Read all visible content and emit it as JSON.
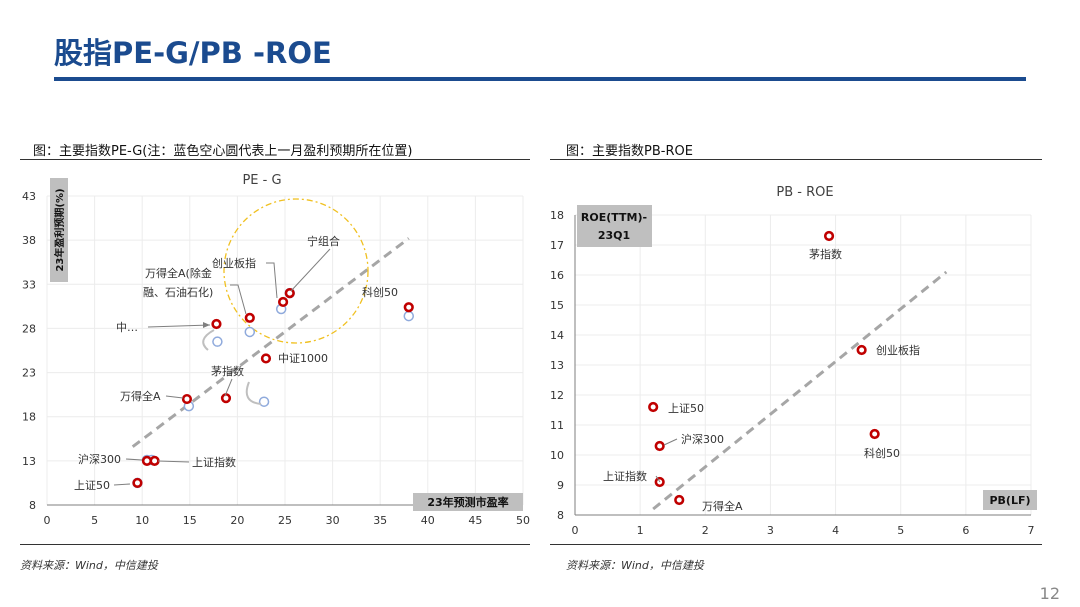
{
  "page": {
    "title": "股指PE-G/PB -ROE",
    "page_number": "12"
  },
  "left": {
    "caption": "图：主要指数PE-G(注：蓝色空心圆代表上一月盈利预期所在位置)",
    "source": "资料来源：Wind，中信建投"
  },
  "right": {
    "caption": "图：主要指数PB-ROE",
    "source": "资料来源：Wind，中信建投"
  },
  "colors": {
    "red": "#c00000",
    "blue": "#8faadc",
    "navy": "#1b4b8f",
    "dash": "#a6a6a6",
    "circle": "#f0c020"
  },
  "chart_data": [
    {
      "type": "scatter",
      "title": "PE - G",
      "xlabel": "23年预测市盈率",
      "ylabel": "23年盈利预期(%)",
      "xlim": [
        0,
        50
      ],
      "ylim": [
        8,
        43
      ],
      "xticks": [
        0,
        5,
        10,
        15,
        20,
        25,
        30,
        35,
        40,
        45,
        50
      ],
      "yticks": [
        8,
        13,
        18,
        23,
        28,
        33,
        38,
        43
      ],
      "series": [
        {
          "points": [
            {
              "label": "沪深300",
              "x": 10.5,
              "y": 13.0
            },
            {
              "label": "上证指数",
              "x": 11.3,
              "y": 13.0
            },
            {
              "label": "上证50",
              "x": 9.5,
              "y": 10.5
            },
            {
              "label": "万得全A",
              "x": 14.7,
              "y": 20.0
            },
            {
              "label": "茅指数",
              "x": 18.8,
              "y": 20.1
            },
            {
              "label": "中…",
              "x": 17.8,
              "y": 28.5
            },
            {
              "label": "万得全A(除金融、石油石化)",
              "x": 21.3,
              "y": 29.2
            },
            {
              "label": "中证1000",
              "x": 23.0,
              "y": 24.6
            },
            {
              "label": "创业板指",
              "x": 24.8,
              "y": 31.0
            },
            {
              "label": "宁组合",
              "x": 25.5,
              "y": 32.0
            },
            {
              "label": "科创50",
              "x": 38.0,
              "y": 30.4
            }
          ]
        },
        {
          "points": [
            {
              "x": 10.5,
              "y": 13.1
            },
            {
              "x": 11.0,
              "y": 13.1
            },
            {
              "x": 9.5,
              "y": 10.5
            },
            {
              "x": 14.9,
              "y": 19.2
            },
            {
              "x": 22.8,
              "y": 19.7
            },
            {
              "x": 17.9,
              "y": 26.5
            },
            {
              "x": 21.3,
              "y": 27.6
            },
            {
              "x": 24.6,
              "y": 30.2
            },
            {
              "x": 25.5,
              "y": 32.0
            },
            {
              "x": 38.0,
              "y": 29.4
            }
          ]
        }
      ],
      "trendline": [
        [
          9,
          14.6
        ],
        [
          38,
          38.2
        ]
      ],
      "annotations": [
        "中证1000",
        "宁组合",
        "科创50",
        "上证指数",
        "上证50",
        "沪深300",
        "万得全A",
        "茅指数",
        "创业板指",
        "万得全A(除金",
        "融、石油石化)",
        "中…"
      ]
    },
    {
      "type": "scatter",
      "title": "PB - ROE",
      "xlabel": "PB(LF)",
      "ylabel": "ROE(TTM)-23Q1",
      "xlim": [
        0,
        7
      ],
      "ylim": [
        8,
        18
      ],
      "xticks": [
        0,
        1,
        2,
        3,
        4,
        5,
        6,
        7
      ],
      "yticks": [
        8,
        9,
        10,
        11,
        12,
        13,
        14,
        15,
        16,
        17,
        18
      ],
      "series": [
        {
          "points": [
            {
              "label": "茅指数",
              "x": 3.9,
              "y": 17.3
            },
            {
              "label": "创业板指",
              "x": 4.4,
              "y": 13.5
            },
            {
              "label": "上证50",
              "x": 1.2,
              "y": 11.6
            },
            {
              "label": "沪深300",
              "x": 1.3,
              "y": 10.3
            },
            {
              "label": "科创50",
              "x": 4.6,
              "y": 10.7
            },
            {
              "label": "上证指数",
              "x": 1.3,
              "y": 9.1
            },
            {
              "label": "万得全A",
              "x": 1.6,
              "y": 8.5
            }
          ]
        }
      ],
      "trendline": [
        [
          1.2,
          8.2
        ],
        [
          5.7,
          16.1
        ]
      ],
      "ylabel_lines": [
        "ROE(TTM)-",
        "23Q1"
      ]
    }
  ]
}
